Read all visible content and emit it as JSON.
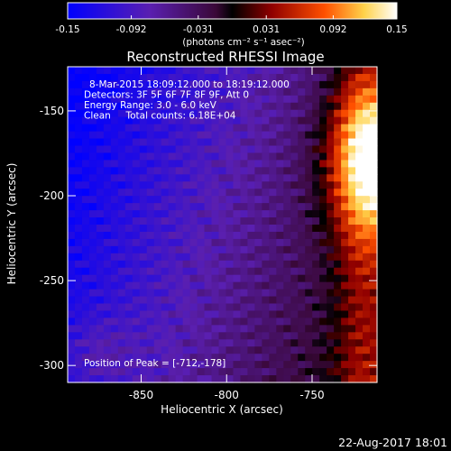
{
  "chart_data": {
    "type": "heatmap",
    "title": "Reconstructed RHESSI Image",
    "xlabel": "Heliocentric X (arcsec)",
    "ylabel": "Heliocentric Y (arcsec)",
    "xlim": [
      -893,
      -712
    ],
    "ylim": [
      -310,
      -124
    ],
    "x_ticks": [
      -850,
      -800,
      -750
    ],
    "y_ticks": [
      -150,
      -200,
      -250,
      -300
    ],
    "colorbar": {
      "range": [
        -0.15,
        0.15
      ],
      "ticks": [
        "-0.15",
        "-0.092",
        "-0.031",
        "0.031",
        "0.092",
        "0.15"
      ],
      "unit_label": "(photons cm⁻² s⁻¹ asec⁻²)",
      "colors": [
        "#0000ff",
        "#5a1fb0",
        "#3a0838",
        "#000000",
        "#900000",
        "#ff5000",
        "#ffd24a",
        "#ffffff"
      ]
    },
    "info_lines": [
      "8-Mar-2015 18:09:12.000 to 18:19:12.000",
      "Detectors: 3F 5F 6F 7F 8F 9F, Att 0",
      "Energy Range: 3.0 - 6.0 keV",
      "Clean     Total counts: 6.18E+04"
    ],
    "peak_label": "Position of Peak = [-712,-178]",
    "peak": [
      -712,
      -178
    ],
    "footer_date": "22-Aug-2017 18:01"
  }
}
